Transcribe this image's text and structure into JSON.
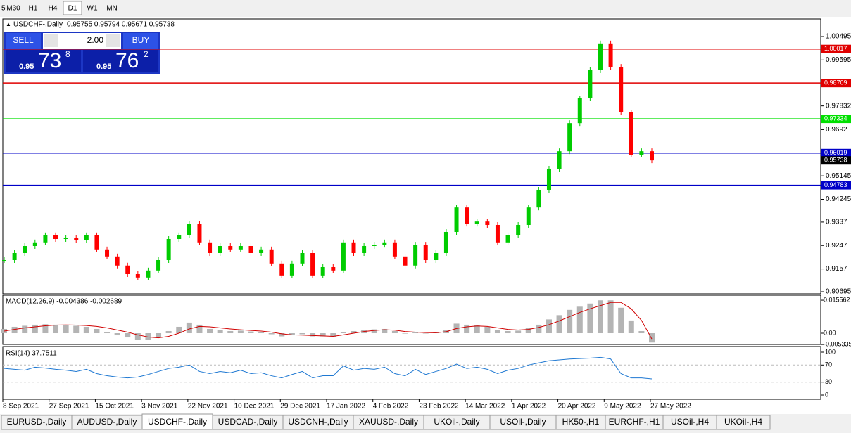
{
  "toolbar": {
    "timeframes": [
      "5",
      "M30",
      "H1",
      "H4",
      "D1",
      "W1",
      "MN"
    ],
    "active": 4
  },
  "main_chart": {
    "title": "USDCHF-,Daily",
    "ohlc": "0.95755 0.95794 0.95671 0.95738",
    "ylim": [
      0.90614,
      1.0117
    ],
    "yticks": [
      1.00495,
      0.99595,
      0.97832,
      0.9692,
      0.95145,
      0.94245,
      0.9337,
      0.9247,
      0.9157,
      0.90695
    ],
    "up_color": "#00cc00",
    "down_color": "#ff0000",
    "closes": [
      0.9191,
      0.9218,
      0.9245,
      0.9259,
      0.9286,
      0.9272,
      0.9277,
      0.9267,
      0.9286,
      0.9232,
      0.9205,
      0.917,
      0.9137,
      0.9124,
      0.9151,
      0.9191,
      0.9272,
      0.9286,
      0.9331,
      0.9259,
      0.9218,
      0.9245,
      0.9232,
      0.9245,
      0.9218,
      0.9232,
      0.9178,
      0.9132,
      0.9178,
      0.9218,
      0.9132,
      0.9164,
      0.9151,
      0.9259,
      0.9218,
      0.9245,
      0.925,
      0.9259,
      0.9205,
      0.917,
      0.925,
      0.9191,
      0.9218,
      0.9299,
      0.9393,
      0.9331,
      0.9339,
      0.9326,
      0.9259,
      0.9286,
      0.9326,
      0.9393,
      0.9461,
      0.9542,
      0.9609,
      0.9717,
      0.9812,
      0.992,
      1.0023,
      0.9933,
      0.9758,
      0.9596,
      0.9609,
      0.9574
    ],
    "levels": [
      {
        "value": 1.00017,
        "color": "#e00000"
      },
      {
        "value": 0.98709,
        "color": "#e00000"
      },
      {
        "value": 0.97334,
        "color": "#00e000"
      },
      {
        "value": 0.96019,
        "color": "#0000c8"
      },
      {
        "value": 0.94783,
        "color": "#0000c8"
      }
    ],
    "current_price": 0.95738
  },
  "trade_panel": {
    "sell": "SELL",
    "buy": "BUY",
    "lot": "2.00",
    "sell_price": {
      "big": "0.95",
      "pips": "73",
      "frac": "8"
    },
    "buy_price": {
      "big": "0.95",
      "pips": "76",
      "frac": "2"
    }
  },
  "macd": {
    "label": "MACD(12,26,9) -0.004386 -0.002689",
    "ylim": [
      -0.0053,
      0.0179
    ],
    "yticks": [
      0.015562,
      {
        "value": 0,
        "label": "0.00"
      },
      -0.005335
    ],
    "hist_color": "#b4b4b4",
    "signal_color": "#d00000",
    "hist": [
      0.002,
      0.003,
      0.0035,
      0.004,
      0.0042,
      0.004,
      0.0038,
      0.0035,
      0.003,
      0.002,
      0.0005,
      -0.001,
      -0.002,
      -0.003,
      -0.0032,
      -0.002,
      0.001,
      0.003,
      0.005,
      0.004,
      0.002,
      0.0015,
      0.001,
      0.0012,
      0.0008,
      0.0005,
      -0.0005,
      -0.0015,
      -0.001,
      -0.0005,
      -0.0015,
      -0.0015,
      -0.0018,
      0.0005,
      0.001,
      0.0015,
      0.0018,
      0.002,
      0.001,
      -0.0002,
      0.0005,
      0,
      0.0002,
      0.0015,
      0.0045,
      0.004,
      0.0038,
      0.003,
      0.0015,
      0.001,
      0.0012,
      0.0025,
      0.004,
      0.0065,
      0.0085,
      0.011,
      0.0125,
      0.014,
      0.0155,
      0.0155,
      0.012,
      0.006,
      0.001,
      -0.004386
    ],
    "signal": [
      0.001,
      0.0018,
      0.0025,
      0.003,
      0.0035,
      0.0038,
      0.0039,
      0.0038,
      0.0036,
      0.0032,
      0.0025,
      0.0015,
      0.0005,
      -0.0008,
      -0.0018,
      -0.0022,
      -0.0015,
      0,
      0.002,
      0.0032,
      0.003,
      0.0025,
      0.002,
      0.0016,
      0.0013,
      0.001,
      0.0005,
      -0.0003,
      -0.0008,
      -0.0009,
      -0.0011,
      -0.0013,
      -0.0015,
      -0.0008,
      0,
      0.0008,
      0.0013,
      0.0016,
      0.0014,
      0.0008,
      0.0005,
      0.0003,
      0.0002,
      0.0007,
      0.0022,
      0.003,
      0.0034,
      0.0032,
      0.0025,
      0.0018,
      0.0015,
      0.0018,
      0.0027,
      0.004,
      0.0058,
      0.0078,
      0.0098,
      0.0115,
      0.013,
      0.0145,
      0.0145,
      0.0115,
      0.006,
      -0.002689
    ]
  },
  "rsi": {
    "label": "RSI(14) 37.7511",
    "ylim": [
      -9.8,
      113.1
    ],
    "yticks": [
      100,
      70,
      30,
      0
    ],
    "color": "#1e78d2",
    "values": [
      62,
      60,
      58,
      65,
      63,
      60,
      58,
      55,
      60,
      50,
      45,
      42,
      40,
      42,
      48,
      55,
      62,
      65,
      70,
      55,
      50,
      55,
      52,
      58,
      50,
      52,
      45,
      40,
      48,
      55,
      40,
      45,
      45,
      68,
      58,
      62,
      60,
      65,
      50,
      45,
      60,
      48,
      55,
      62,
      72,
      62,
      65,
      60,
      50,
      58,
      62,
      70,
      75,
      80,
      82,
      84,
      85,
      86,
      88,
      84,
      50,
      40,
      40,
      37.7511
    ]
  },
  "dates": [
    "8 Sep 2021",
    "27 Sep 2021",
    "15 Oct 2021",
    "3 Nov 2021",
    "22 Nov 2021",
    "10 Dec 2021",
    "29 Dec 2021",
    "17 Jan 2022",
    "4 Feb 2022",
    "23 Feb 2022",
    "14 Mar 2022",
    "1 Apr 2022",
    "20 Apr 2022",
    "9 May 2022",
    "27 May 2022"
  ],
  "tabs": {
    "items": [
      "EURUSD-,Daily",
      "AUDUSD-,Daily",
      "USDCHF-,Daily",
      "USDCAD-,Daily",
      "USDCNH-,Daily",
      "XAUUSD-,Daily",
      "UKOil-,Daily",
      "USOil-,Daily",
      "HK50-,H1",
      "EURCHF-,H1",
      "USOil-,H4",
      "UKOil-,H4"
    ],
    "active": 2
  }
}
